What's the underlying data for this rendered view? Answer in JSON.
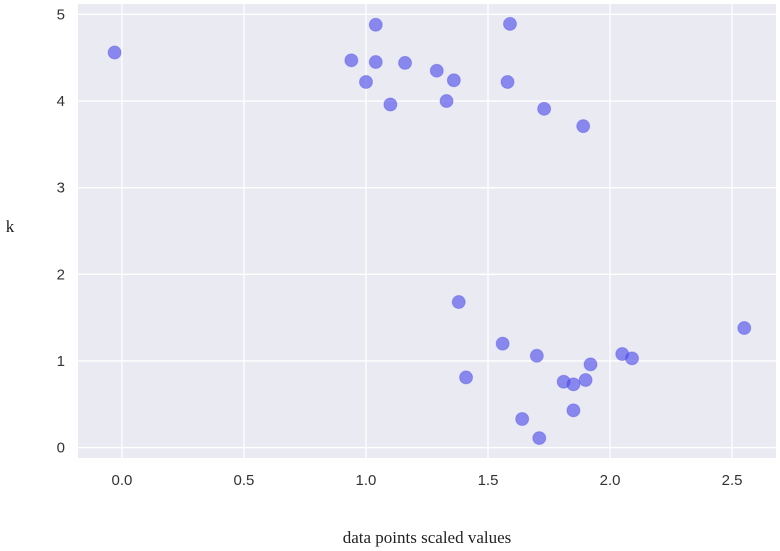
{
  "chart_data": {
    "type": "scatter",
    "title": "",
    "xlabel": "data points scaled values",
    "ylabel": "k",
    "xlim": [
      -0.18,
      2.68
    ],
    "ylim": [
      -0.12,
      5.12
    ],
    "xticks": [
      0.0,
      0.5,
      1.0,
      1.5,
      2.0,
      2.5
    ],
    "xtick_labels": [
      "0.0",
      "0.5",
      "1.0",
      "1.5",
      "2.0",
      "2.5"
    ],
    "yticks": [
      0,
      1,
      2,
      3,
      4,
      5
    ],
    "ytick_labels": [
      "0",
      "1",
      "2",
      "3",
      "4",
      "5"
    ],
    "grid": true,
    "background_color": "#eaeaf2",
    "grid_color": "#ffffff",
    "point_color": "#4b4bea",
    "point_opacity": 0.62,
    "points": [
      {
        "x": -0.03,
        "y": 4.56
      },
      {
        "x": 0.94,
        "y": 4.47
      },
      {
        "x": 1.0,
        "y": 4.22
      },
      {
        "x": 1.04,
        "y": 4.88
      },
      {
        "x": 1.04,
        "y": 4.45
      },
      {
        "x": 1.1,
        "y": 3.96
      },
      {
        "x": 1.16,
        "y": 4.44
      },
      {
        "x": 1.29,
        "y": 4.35
      },
      {
        "x": 1.33,
        "y": 4.0
      },
      {
        "x": 1.36,
        "y": 4.24
      },
      {
        "x": 1.58,
        "y": 4.22
      },
      {
        "x": 1.59,
        "y": 4.89
      },
      {
        "x": 1.73,
        "y": 3.91
      },
      {
        "x": 1.89,
        "y": 3.71
      },
      {
        "x": 1.38,
        "y": 1.68
      },
      {
        "x": 1.41,
        "y": 0.81
      },
      {
        "x": 1.56,
        "y": 1.2
      },
      {
        "x": 1.64,
        "y": 0.33
      },
      {
        "x": 1.7,
        "y": 1.06
      },
      {
        "x": 1.71,
        "y": 0.11
      },
      {
        "x": 1.81,
        "y": 0.76
      },
      {
        "x": 1.85,
        "y": 0.73
      },
      {
        "x": 1.85,
        "y": 0.43
      },
      {
        "x": 1.9,
        "y": 0.78
      },
      {
        "x": 1.92,
        "y": 0.96
      },
      {
        "x": 2.05,
        "y": 1.08
      },
      {
        "x": 2.09,
        "y": 1.03
      },
      {
        "x": 2.55,
        "y": 1.38
      }
    ]
  }
}
